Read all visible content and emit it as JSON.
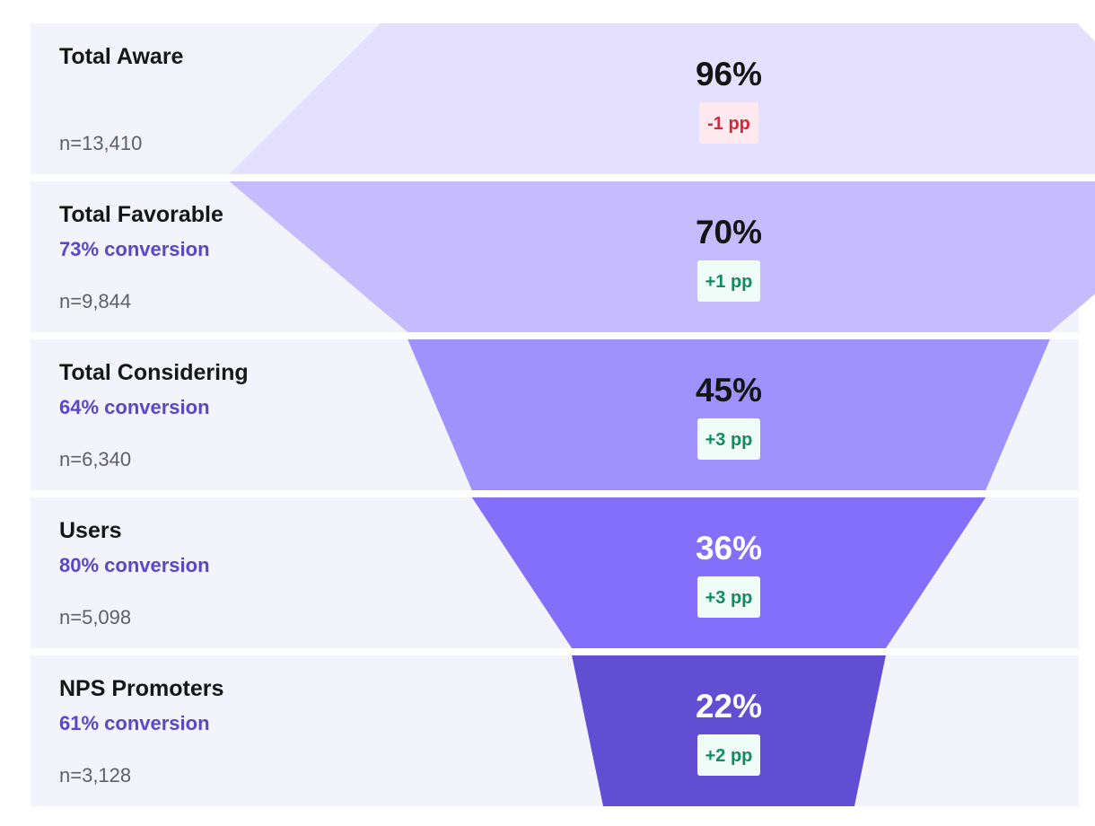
{
  "chart_data": {
    "type": "funnel",
    "stages": [
      {
        "label": "Total Aware",
        "value": 96,
        "value_label": "96%",
        "conversion": "",
        "n": "n=13,410",
        "change": -1,
        "change_label": "-1 pp"
      },
      {
        "label": "Total Favorable",
        "value": 70,
        "value_label": "70%",
        "conversion": "73% conversion",
        "n": "n=9,844",
        "change": 1,
        "change_label": "+1 pp"
      },
      {
        "label": "Total Considering",
        "value": 45,
        "value_label": "45%",
        "conversion": "64% conversion",
        "n": "n=6,340",
        "change": 3,
        "change_label": "+3 pp"
      },
      {
        "label": "Users",
        "value": 36,
        "value_label": "36%",
        "conversion": "80% conversion",
        "n": "n=5,098",
        "change": 3,
        "change_label": "+3 pp"
      },
      {
        "label": "NPS Promoters",
        "value": 22,
        "value_label": "22%",
        "conversion": "61% conversion",
        "n": "n=3,128",
        "change": 2,
        "change_label": "+2 pp"
      }
    ]
  },
  "colors": {
    "row_background": "#f3f3fb",
    "stage_fills": [
      "#e4e0fe",
      "#c6bcfd",
      "#a092fc",
      "#846ffb",
      "#614ed3"
    ],
    "pct_text_dark": "#141414",
    "pct_text_light": "#ffffff",
    "negative_text": "#d6263c",
    "negative_bg": "#fde9ee",
    "positive_text": "#138a63",
    "positive_bg": "#effcf7"
  }
}
